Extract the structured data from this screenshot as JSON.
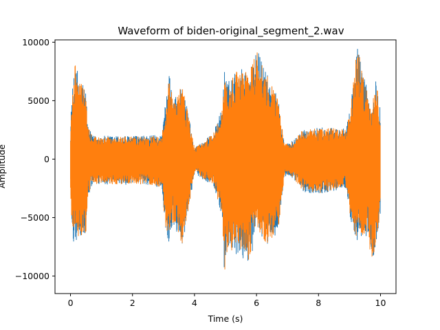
{
  "chart_data": {
    "type": "line",
    "title": "Waveform of biden-original_segment_2.wav",
    "xlabel": "Time (s)",
    "ylabel": "Amplitude",
    "xlim": [
      -0.5,
      10.5
    ],
    "ylim": [
      -11500,
      10200
    ],
    "xticks": [
      0,
      2,
      4,
      6,
      8,
      10
    ],
    "yticks": [
      -10000,
      -5000,
      0,
      5000,
      10000
    ],
    "grid": false,
    "legend": "none",
    "series": [
      {
        "color": "#1f77b4",
        "envelope": [
          {
            "t": 0.0,
            "max": 2800,
            "min": -3000
          },
          {
            "t": 0.05,
            "max": 6000,
            "min": -6000
          },
          {
            "t": 0.1,
            "max": 6400,
            "min": -7200
          },
          {
            "t": 0.17,
            "max": 9900,
            "min": -7100
          },
          {
            "t": 0.25,
            "max": 6500,
            "min": -6800
          },
          {
            "t": 0.4,
            "max": 6700,
            "min": -6700
          },
          {
            "t": 0.5,
            "max": 6000,
            "min": -6500
          },
          {
            "t": 0.55,
            "max": 3000,
            "min": -3500
          },
          {
            "t": 0.7,
            "max": 2000,
            "min": -2200
          },
          {
            "t": 1.5,
            "max": 2000,
            "min": -2200
          },
          {
            "t": 2.5,
            "max": 2000,
            "min": -2200
          },
          {
            "t": 2.95,
            "max": 2100,
            "min": -2500
          },
          {
            "t": 3.05,
            "max": 4500,
            "min": -5800
          },
          {
            "t": 3.2,
            "max": 7500,
            "min": -7500
          },
          {
            "t": 3.3,
            "max": 5000,
            "min": -5500
          },
          {
            "t": 3.6,
            "max": 6400,
            "min": -7500
          },
          {
            "t": 3.8,
            "max": 4000,
            "min": -4500
          },
          {
            "t": 4.0,
            "max": 1000,
            "min": -1200
          },
          {
            "t": 4.3,
            "max": 1600,
            "min": -1800
          },
          {
            "t": 4.6,
            "max": 2200,
            "min": -2200
          },
          {
            "t": 4.9,
            "max": 4500,
            "min": -5000
          },
          {
            "t": 4.97,
            "max": 8000,
            "min": -10500
          },
          {
            "t": 5.05,
            "max": 6500,
            "min": -8000
          },
          {
            "t": 5.4,
            "max": 7800,
            "min": -8500
          },
          {
            "t": 5.8,
            "max": 7800,
            "min": -8800
          },
          {
            "t": 6.0,
            "max": 9600,
            "min": -6000
          },
          {
            "t": 6.3,
            "max": 7500,
            "min": -7500
          },
          {
            "t": 6.7,
            "max": 5200,
            "min": -6200
          },
          {
            "t": 6.9,
            "max": 1300,
            "min": -1500
          },
          {
            "t": 7.2,
            "max": 1600,
            "min": -1700
          },
          {
            "t": 7.5,
            "max": 2600,
            "min": -2800
          },
          {
            "t": 8.0,
            "max": 2700,
            "min": -3000
          },
          {
            "t": 8.5,
            "max": 2700,
            "min": -2700
          },
          {
            "t": 8.9,
            "max": 2600,
            "min": -2500
          },
          {
            "t": 9.05,
            "max": 5000,
            "min": -5500
          },
          {
            "t": 9.25,
            "max": 9800,
            "min": -7200
          },
          {
            "t": 9.6,
            "max": 5700,
            "min": -6500
          },
          {
            "t": 9.7,
            "max": 4000,
            "min": -9300
          },
          {
            "t": 9.85,
            "max": 7000,
            "min": -7300
          },
          {
            "t": 10.0,
            "max": 4500,
            "min": -4800
          }
        ]
      },
      {
        "color": "#ff7f0e",
        "envelope": [
          {
            "t": 0.0,
            "max": 2700,
            "min": -2900
          },
          {
            "t": 0.05,
            "max": 5900,
            "min": -5900
          },
          {
            "t": 0.1,
            "max": 6300,
            "min": -7100
          },
          {
            "t": 0.17,
            "max": 9700,
            "min": -7000
          },
          {
            "t": 0.25,
            "max": 6400,
            "min": -6700
          },
          {
            "t": 0.4,
            "max": 6600,
            "min": -6600
          },
          {
            "t": 0.5,
            "max": 5900,
            "min": -6400
          },
          {
            "t": 0.55,
            "max": 2900,
            "min": -3400
          },
          {
            "t": 0.7,
            "max": 1950,
            "min": -2150
          },
          {
            "t": 1.5,
            "max": 1950,
            "min": -2150
          },
          {
            "t": 2.5,
            "max": 1950,
            "min": -2150
          },
          {
            "t": 2.95,
            "max": 2050,
            "min": -2450
          },
          {
            "t": 3.05,
            "max": 4400,
            "min": -5700
          },
          {
            "t": 3.2,
            "max": 7400,
            "min": -7400
          },
          {
            "t": 3.3,
            "max": 4900,
            "min": -5400
          },
          {
            "t": 3.6,
            "max": 6300,
            "min": -7400
          },
          {
            "t": 3.8,
            "max": 3900,
            "min": -4400
          },
          {
            "t": 4.0,
            "max": 950,
            "min": -1150
          },
          {
            "t": 4.3,
            "max": 1550,
            "min": -1750
          },
          {
            "t": 4.6,
            "max": 2150,
            "min": -2150
          },
          {
            "t": 4.9,
            "max": 4400,
            "min": -4900
          },
          {
            "t": 4.97,
            "max": 7900,
            "min": -10400
          },
          {
            "t": 5.05,
            "max": 6400,
            "min": -7900
          },
          {
            "t": 5.4,
            "max": 7700,
            "min": -8400
          },
          {
            "t": 5.8,
            "max": 7700,
            "min": -8700
          },
          {
            "t": 6.0,
            "max": 9500,
            "min": -5900
          },
          {
            "t": 6.3,
            "max": 7400,
            "min": -7400
          },
          {
            "t": 6.7,
            "max": 5100,
            "min": -6100
          },
          {
            "t": 6.9,
            "max": 1250,
            "min": -1450
          },
          {
            "t": 7.2,
            "max": 1550,
            "min": -1650
          },
          {
            "t": 7.5,
            "max": 2550,
            "min": -2750
          },
          {
            "t": 8.0,
            "max": 2650,
            "min": -2950
          },
          {
            "t": 8.5,
            "max": 2650,
            "min": -2650
          },
          {
            "t": 8.9,
            "max": 2550,
            "min": -2450
          },
          {
            "t": 9.05,
            "max": 4900,
            "min": -5400
          },
          {
            "t": 9.25,
            "max": 9600,
            "min": -7100
          },
          {
            "t": 9.6,
            "max": 5600,
            "min": -6400
          },
          {
            "t": 9.7,
            "max": 3900,
            "min": -9200
          },
          {
            "t": 9.85,
            "max": 6900,
            "min": -7200
          },
          {
            "t": 10.0,
            "max": 4400,
            "min": -4700
          }
        ]
      }
    ]
  }
}
